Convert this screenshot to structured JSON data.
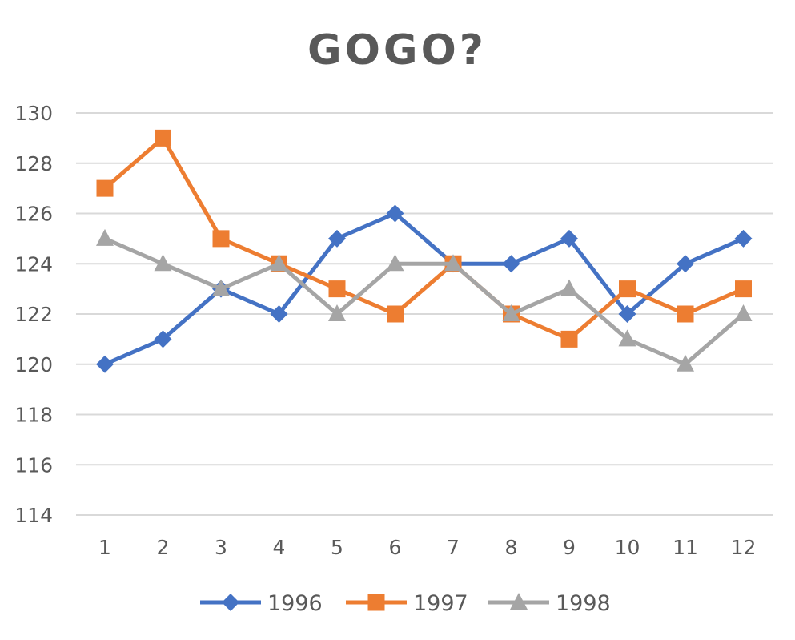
{
  "chart_data": {
    "type": "line",
    "title": "GOGO?",
    "xlabel": "",
    "ylabel": "",
    "categories": [
      "1",
      "2",
      "3",
      "4",
      "5",
      "6",
      "7",
      "8",
      "9",
      "10",
      "11",
      "12"
    ],
    "ylim": [
      114,
      130
    ],
    "yticks": [
      "114",
      "116",
      "118",
      "120",
      "122",
      "124",
      "126",
      "128",
      "130"
    ],
    "grid": "horizontal",
    "legend_position": "bottom",
    "series": [
      {
        "name": "1996",
        "color": "#4472C4",
        "marker": "diamond",
        "values": [
          120,
          121,
          123,
          122,
          125,
          126,
          124,
          124,
          125,
          122,
          124,
          125
        ]
      },
      {
        "name": "1997",
        "color": "#ED7D31",
        "marker": "square",
        "values": [
          127,
          129,
          125,
          124,
          123,
          122,
          124,
          122,
          121,
          123,
          122,
          123
        ]
      },
      {
        "name": "1998",
        "color": "#A5A5A5",
        "marker": "triangle",
        "values": [
          125,
          124,
          123,
          124,
          122,
          124,
          124,
          122,
          123,
          121,
          120,
          122
        ]
      }
    ]
  }
}
